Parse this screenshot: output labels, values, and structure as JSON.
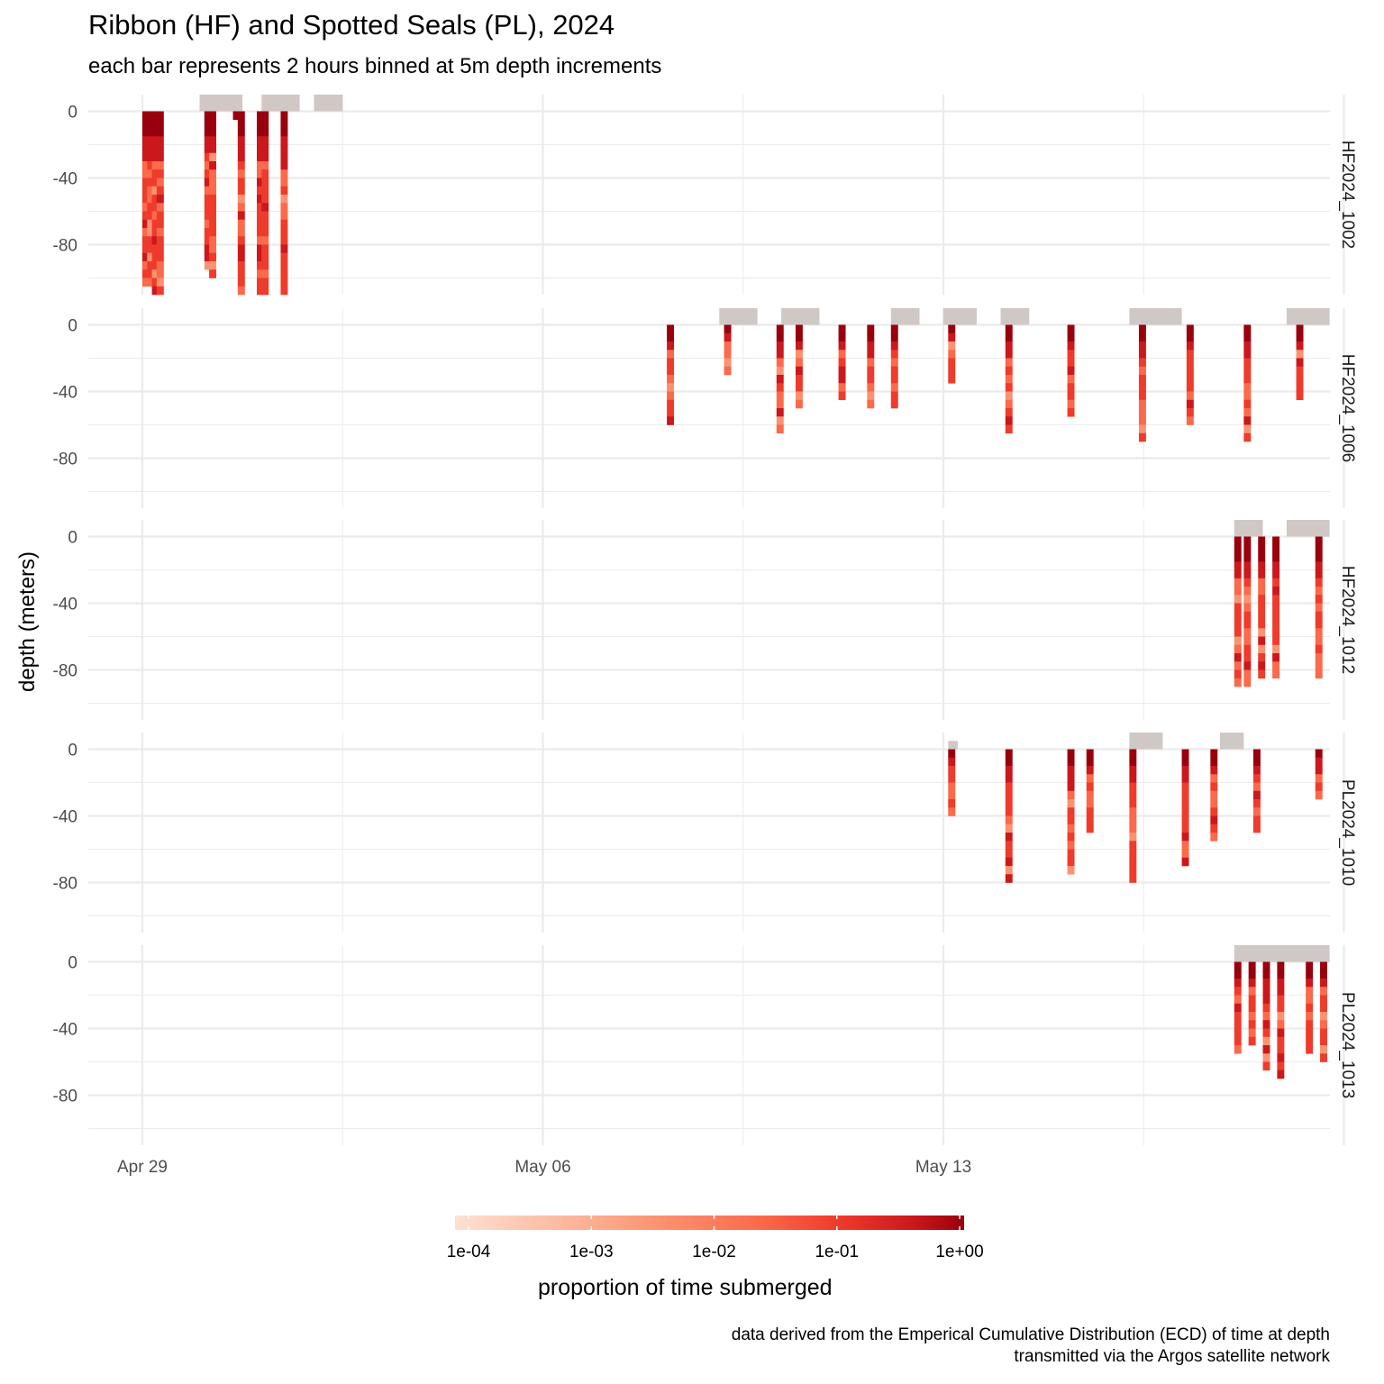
{
  "title": "Ribbon (HF) and Spotted Seals (PL), 2024",
  "subtitle": "each bar represents 2 hours binned at 5m depth increments",
  "caption": {
    "line1": "data derived from the Emperical Cumulative Distribution (ECD) of time at depth",
    "line2": "transmitted via the Argos satellite network"
  },
  "colors": {
    "scale": [
      "#fee0d2",
      "#fcbba1",
      "#fc9272",
      "#fb6a4a",
      "#ef3b2c",
      "#cb181d",
      "#99000d"
    ],
    "surface_bar": "#d0c8c4",
    "grid": "#ebebeb"
  },
  "chart_data": {
    "type": "heatmap",
    "facet_by": "deployment",
    "xlabel": "",
    "ylabel": "depth (meters)",
    "x_tick_labels": [
      "Apr 29",
      "May 06",
      "May 13"
    ],
    "x_tick_dates": [
      "2024-04-29",
      "2024-05-06",
      "2024-05-13"
    ],
    "xlim": [
      "2024-04-28",
      "2024-05-20"
    ],
    "y_ticks": [
      0,
      -40,
      -80
    ],
    "ylim": [
      -110,
      10
    ],
    "grid": true,
    "legend": {
      "title": "proportion of time submerged",
      "position": "bottom",
      "scale": "log10",
      "tick_labels": [
        "1e-04",
        "1e-03",
        "1e-02",
        "1e-01",
        "1e+00"
      ],
      "range": [
        0.0001,
        1
      ]
    },
    "panels": [
      {
        "label": "HF2024_1002",
        "bars": [
          {
            "x": "2024-04-29 00:00",
            "depth": -105
          },
          {
            "x": "2024-04-29 02:00",
            "depth": -105
          },
          {
            "x": "2024-04-29 04:00",
            "depth": -110
          },
          {
            "x": "2024-04-29 06:00",
            "depth": -110
          },
          {
            "x": "2024-04-30 02:00",
            "depth": -95
          },
          {
            "x": "2024-04-30 04:00",
            "depth": -100
          },
          {
            "x": "2024-04-30 14:00",
            "depth": -5
          },
          {
            "x": "2024-04-30 16:00",
            "depth": -110
          },
          {
            "x": "2024-05-01 00:00",
            "depth": -110
          },
          {
            "x": "2024-05-01 02:00",
            "depth": -110
          },
          {
            "x": "2024-05-01 10:00",
            "depth": -110
          }
        ],
        "surface": [
          {
            "start": "2024-04-30 00:00",
            "end": "2024-04-30 18:00",
            "height": 10
          },
          {
            "start": "2024-05-01 02:00",
            "end": "2024-05-01 18:00",
            "height": 10
          },
          {
            "start": "2024-05-02 00:00",
            "end": "2024-05-02 12:00",
            "height": 10
          }
        ]
      },
      {
        "label": "HF2024_1006",
        "bars": [
          {
            "x": "2024-05-08 04:00",
            "depth": -60
          },
          {
            "x": "2024-05-09 04:00",
            "depth": -30
          },
          {
            "x": "2024-05-10 02:00",
            "depth": -65
          },
          {
            "x": "2024-05-10 10:00",
            "depth": -50
          },
          {
            "x": "2024-05-11 04:00",
            "depth": -45
          },
          {
            "x": "2024-05-11 16:00",
            "depth": -50
          },
          {
            "x": "2024-05-12 02:00",
            "depth": -50
          },
          {
            "x": "2024-05-13 02:00",
            "depth": -35
          },
          {
            "x": "2024-05-14 02:00",
            "depth": -65
          },
          {
            "x": "2024-05-15 04:00",
            "depth": -55
          },
          {
            "x": "2024-05-16 10:00",
            "depth": -70
          },
          {
            "x": "2024-05-17 06:00",
            "depth": -60
          },
          {
            "x": "2024-05-18 06:00",
            "depth": -70
          },
          {
            "x": "2024-05-19 04:00",
            "depth": -45
          }
        ],
        "surface": [
          {
            "start": "2024-05-09 02:00",
            "end": "2024-05-09 18:00",
            "height": 10
          },
          {
            "start": "2024-05-10 04:00",
            "end": "2024-05-10 20:00",
            "height": 10
          },
          {
            "start": "2024-05-12 02:00",
            "end": "2024-05-12 14:00",
            "height": 10
          },
          {
            "start": "2024-05-13 00:00",
            "end": "2024-05-13 14:00",
            "height": 10
          },
          {
            "start": "2024-05-14 00:00",
            "end": "2024-05-14 12:00",
            "height": 10
          },
          {
            "start": "2024-05-16 06:00",
            "end": "2024-05-17 04:00",
            "height": 10
          },
          {
            "start": "2024-05-19 00:00",
            "end": "2024-05-19 18:00",
            "height": 10
          }
        ]
      },
      {
        "label": "HF2024_1012",
        "bars": [
          {
            "x": "2024-05-18 02:00",
            "depth": -90
          },
          {
            "x": "2024-05-18 06:00",
            "depth": -90
          },
          {
            "x": "2024-05-18 12:00",
            "depth": -85
          },
          {
            "x": "2024-05-18 18:00",
            "depth": -85
          },
          {
            "x": "2024-05-19 12:00",
            "depth": -85
          }
        ],
        "surface": [
          {
            "start": "2024-05-18 02:00",
            "end": "2024-05-18 14:00",
            "height": 10
          },
          {
            "start": "2024-05-19 00:00",
            "end": "2024-05-19 18:00",
            "height": 10
          }
        ]
      },
      {
        "label": "PL2024_1010",
        "bars": [
          {
            "x": "2024-05-13 02:00",
            "depth": -40
          },
          {
            "x": "2024-05-14 02:00",
            "depth": -80
          },
          {
            "x": "2024-05-15 04:00",
            "depth": -75
          },
          {
            "x": "2024-05-15 12:00",
            "depth": -50
          },
          {
            "x": "2024-05-16 06:00",
            "depth": -80
          },
          {
            "x": "2024-05-17 04:00",
            "depth": -70
          },
          {
            "x": "2024-05-17 16:00",
            "depth": -55
          },
          {
            "x": "2024-05-18 10:00",
            "depth": -50
          },
          {
            "x": "2024-05-19 12:00",
            "depth": -30
          }
        ],
        "surface": [
          {
            "start": "2024-05-13 02:00",
            "end": "2024-05-13 06:00",
            "height": 5
          },
          {
            "start": "2024-05-16 06:00",
            "end": "2024-05-16 20:00",
            "height": 10
          },
          {
            "start": "2024-05-17 20:00",
            "end": "2024-05-18 06:00",
            "height": 10
          }
        ]
      },
      {
        "label": "PL2024_1013",
        "bars": [
          {
            "x": "2024-05-18 02:00",
            "depth": -55
          },
          {
            "x": "2024-05-18 08:00",
            "depth": -50
          },
          {
            "x": "2024-05-18 14:00",
            "depth": -65
          },
          {
            "x": "2024-05-18 20:00",
            "depth": -70
          },
          {
            "x": "2024-05-19 08:00",
            "depth": -55
          },
          {
            "x": "2024-05-19 14:00",
            "depth": -60
          }
        ],
        "surface": [
          {
            "start": "2024-05-18 02:00",
            "end": "2024-05-19 18:00",
            "height": 10
          }
        ]
      }
    ]
  }
}
